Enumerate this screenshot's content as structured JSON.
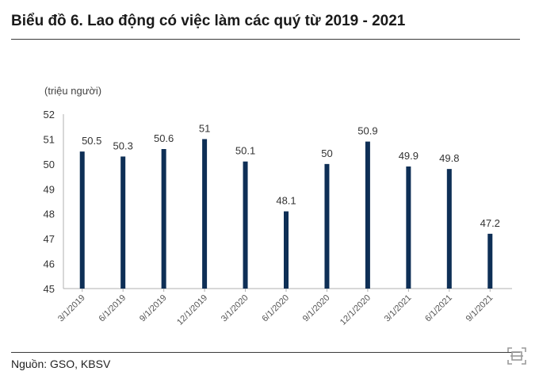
{
  "title": "Biểu đồ 6. Lao động có việc làm các quý từ 2019 - 2021",
  "source": "Nguồn: GSO, KBSV",
  "colors": {
    "bar": "#0e2f56",
    "text": "#222222",
    "axis": "#b0b0b0"
  },
  "icons": {
    "corner": "scan-icon"
  },
  "chart_data": {
    "type": "bar",
    "ylabel": "(triệu người)",
    "xlabel": "",
    "ylim": [
      45,
      52
    ],
    "yticks": [
      45,
      46,
      47,
      48,
      49,
      50,
      51,
      52
    ],
    "categories": [
      "3/1/2019",
      "6/1/2019",
      "9/1/2019",
      "12/1/2019",
      "3/1/2020",
      "6/1/2020",
      "9/1/2020",
      "12/1/2020",
      "3/1/2021",
      "6/1/2021",
      "9/1/2021"
    ],
    "values": [
      50.5,
      50.3,
      50.6,
      51,
      50.1,
      48.1,
      50,
      50.9,
      49.9,
      49.8,
      47.2
    ],
    "data_labels": [
      "50.5",
      "50.3",
      "50.6",
      "51",
      "50.1",
      "48.1",
      "50",
      "50.9",
      "49.9",
      "49.8",
      "47.2"
    ],
    "grid": false,
    "legend": "none"
  }
}
